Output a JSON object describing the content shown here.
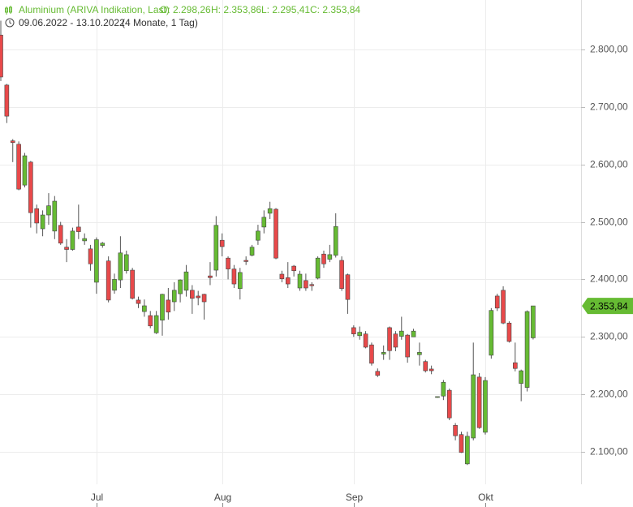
{
  "chart_data": {
    "type": "candlestick",
    "title": "Aluminium (ARIVA Indikation, Last)",
    "ohlc_header": [
      "O: 2.298,26",
      "H: 2.353,86",
      "L: 2.295,41",
      "C: 2.353,84"
    ],
    "date_range": "09.06.2022 - 13.10.2022",
    "period": "(4 Monate, 1 Tag)",
    "up_color": "#66bb33",
    "down_color": "#e8494a",
    "last_price_label": "2.353,84",
    "categories": [
      null,
      null,
      null,
      null,
      null,
      null,
      null,
      null,
      null,
      null,
      null,
      null,
      null,
      null,
      null,
      null,
      "Jul",
      null,
      null,
      null,
      null,
      null,
      null,
      null,
      null,
      null,
      null,
      null,
      null,
      null,
      null,
      null,
      null,
      null,
      null,
      null,
      null,
      "Aug",
      null,
      null,
      null,
      null,
      null,
      null,
      null,
      null,
      null,
      null,
      null,
      null,
      null,
      null,
      null,
      null,
      null,
      null,
      null,
      null,
      null,
      "Sep",
      null,
      null,
      null,
      null,
      null,
      null,
      null,
      null,
      null,
      null,
      null,
      null,
      null,
      null,
      null,
      null,
      null,
      null,
      null,
      null,
      null,
      "Okt",
      null,
      null,
      null,
      null,
      null,
      null,
      null,
      null
    ],
    "open": [
      2825,
      2738,
      2641,
      2635,
      2564,
      2604,
      2523,
      2488,
      2512,
      2484,
      2494,
      2456,
      2452,
      2491,
      2467,
      2453,
      2395,
      2459,
      2432,
      2381,
      2399,
      2415,
      2416,
      2364,
      2344,
      2337,
      2307,
      2329,
      2364,
      2361,
      2375,
      2381,
      2381,
      2371,
      2374,
      2406,
      2416,
      2468,
      2437,
      2418,
      2384,
      2433,
      2442,
      2468,
      2491,
      2515,
      2522,
      2409,
      2403,
      2423,
      2385,
      2398,
      2391,
      2402,
      2444,
      2435,
      2442,
      2433,
      2408,
      2316,
      2302,
      2305,
      2286,
      2240,
      2270,
      2316,
      2305,
      2301,
      2303,
      2300,
      2269,
      2257,
      2244,
      2195,
      2197,
      2207,
      2146,
      2130,
      2079,
      2124,
      2230,
      2134,
      2268,
      2371,
      2381,
      2324,
      2255,
      2219,
      2212,
      2298.26
    ],
    "high": [
      2850,
      2740,
      2644,
      2640,
      2620,
      2606,
      2530,
      2520,
      2550,
      2545,
      2500,
      2470,
      2490,
      2530,
      2480,
      2460,
      2473,
      2465,
      2440,
      2410,
      2475,
      2450,
      2420,
      2370,
      2365,
      2345,
      2345,
      2375,
      2385,
      2395,
      2400,
      2425,
      2390,
      2380,
      2375,
      2430,
      2510,
      2480,
      2440,
      2425,
      2420,
      2440,
      2460,
      2495,
      2520,
      2535,
      2524,
      2415,
      2430,
      2425,
      2415,
      2410,
      2395,
      2440,
      2450,
      2460,
      2515,
      2440,
      2410,
      2320,
      2318,
      2310,
      2290,
      2245,
      2285,
      2318,
      2310,
      2335,
      2305,
      2314,
      2290,
      2260,
      2250,
      2196,
      2225,
      2210,
      2150,
      2135,
      2135,
      2290,
      2237,
      2230,
      2350,
      2375,
      2388,
      2327,
      2290,
      2243,
      2346,
      2353.86
    ],
    "low": [
      2745,
      2672,
      2604,
      2555,
      2560,
      2490,
      2480,
      2475,
      2495,
      2470,
      2460,
      2430,
      2450,
      2470,
      2460,
      2415,
      2375,
      2455,
      2360,
      2375,
      2385,
      2410,
      2365,
      2350,
      2335,
      2315,
      2305,
      2302,
      2330,
      2345,
      2360,
      2370,
      2340,
      2355,
      2330,
      2390,
      2405,
      2440,
      2400,
      2385,
      2365,
      2425,
      2440,
      2460,
      2480,
      2505,
      2435,
      2395,
      2385,
      2405,
      2380,
      2380,
      2380,
      2400,
      2420,
      2430,
      2438,
      2380,
      2340,
      2300,
      2295,
      2280,
      2250,
      2230,
      2260,
      2260,
      2275,
      2295,
      2255,
      2300,
      2250,
      2238,
      2235,
      2194,
      2190,
      2155,
      2120,
      2098,
      2077,
      2120,
      2140,
      2130,
      2262,
      2345,
      2322,
      2290,
      2240,
      2188,
      2205,
      2295.41
    ],
    "close": [
      2752,
      2684,
      2638,
      2557,
      2615,
      2516,
      2498,
      2512,
      2528,
      2536,
      2463,
      2452,
      2484,
      2483,
      2471,
      2427,
      2469,
      2463,
      2364,
      2400,
      2446,
      2443,
      2367,
      2358,
      2354,
      2319,
      2337,
      2374,
      2343,
      2381,
      2399,
      2413,
      2367,
      2368,
      2361,
      2403,
      2494,
      2457,
      2418,
      2392,
      2412,
      2431,
      2456,
      2484,
      2508,
      2523,
      2437,
      2401,
      2392,
      2415,
      2409,
      2385,
      2389,
      2437,
      2427,
      2443,
      2492,
      2384,
      2365,
      2305,
      2308,
      2282,
      2254,
      2233,
      2273,
      2276,
      2282,
      2310,
      2265,
      2310,
      2273,
      2241,
      2241,
      2196,
      2221,
      2159,
      2128,
      2099,
      2127,
      2234,
      2142,
      2224,
      2346,
      2350,
      2324,
      2292,
      2245,
      2241,
      2344,
      2353.84
    ],
    "ylim": [
      2043.5,
      2886
    ],
    "yticks": [
      {
        "value": 2100,
        "label": "2.100,00"
      },
      {
        "value": 2200,
        "label": "2.200,00"
      },
      {
        "value": 2300,
        "label": "2.300,00"
      },
      {
        "value": 2400,
        "label": "2.400,00"
      },
      {
        "value": 2500,
        "label": "2.500,00"
      },
      {
        "value": 2600,
        "label": "2.600,00"
      },
      {
        "value": 2700,
        "label": "2.700,00"
      },
      {
        "value": 2800,
        "label": "2.800,00"
      }
    ],
    "grid": true
  }
}
